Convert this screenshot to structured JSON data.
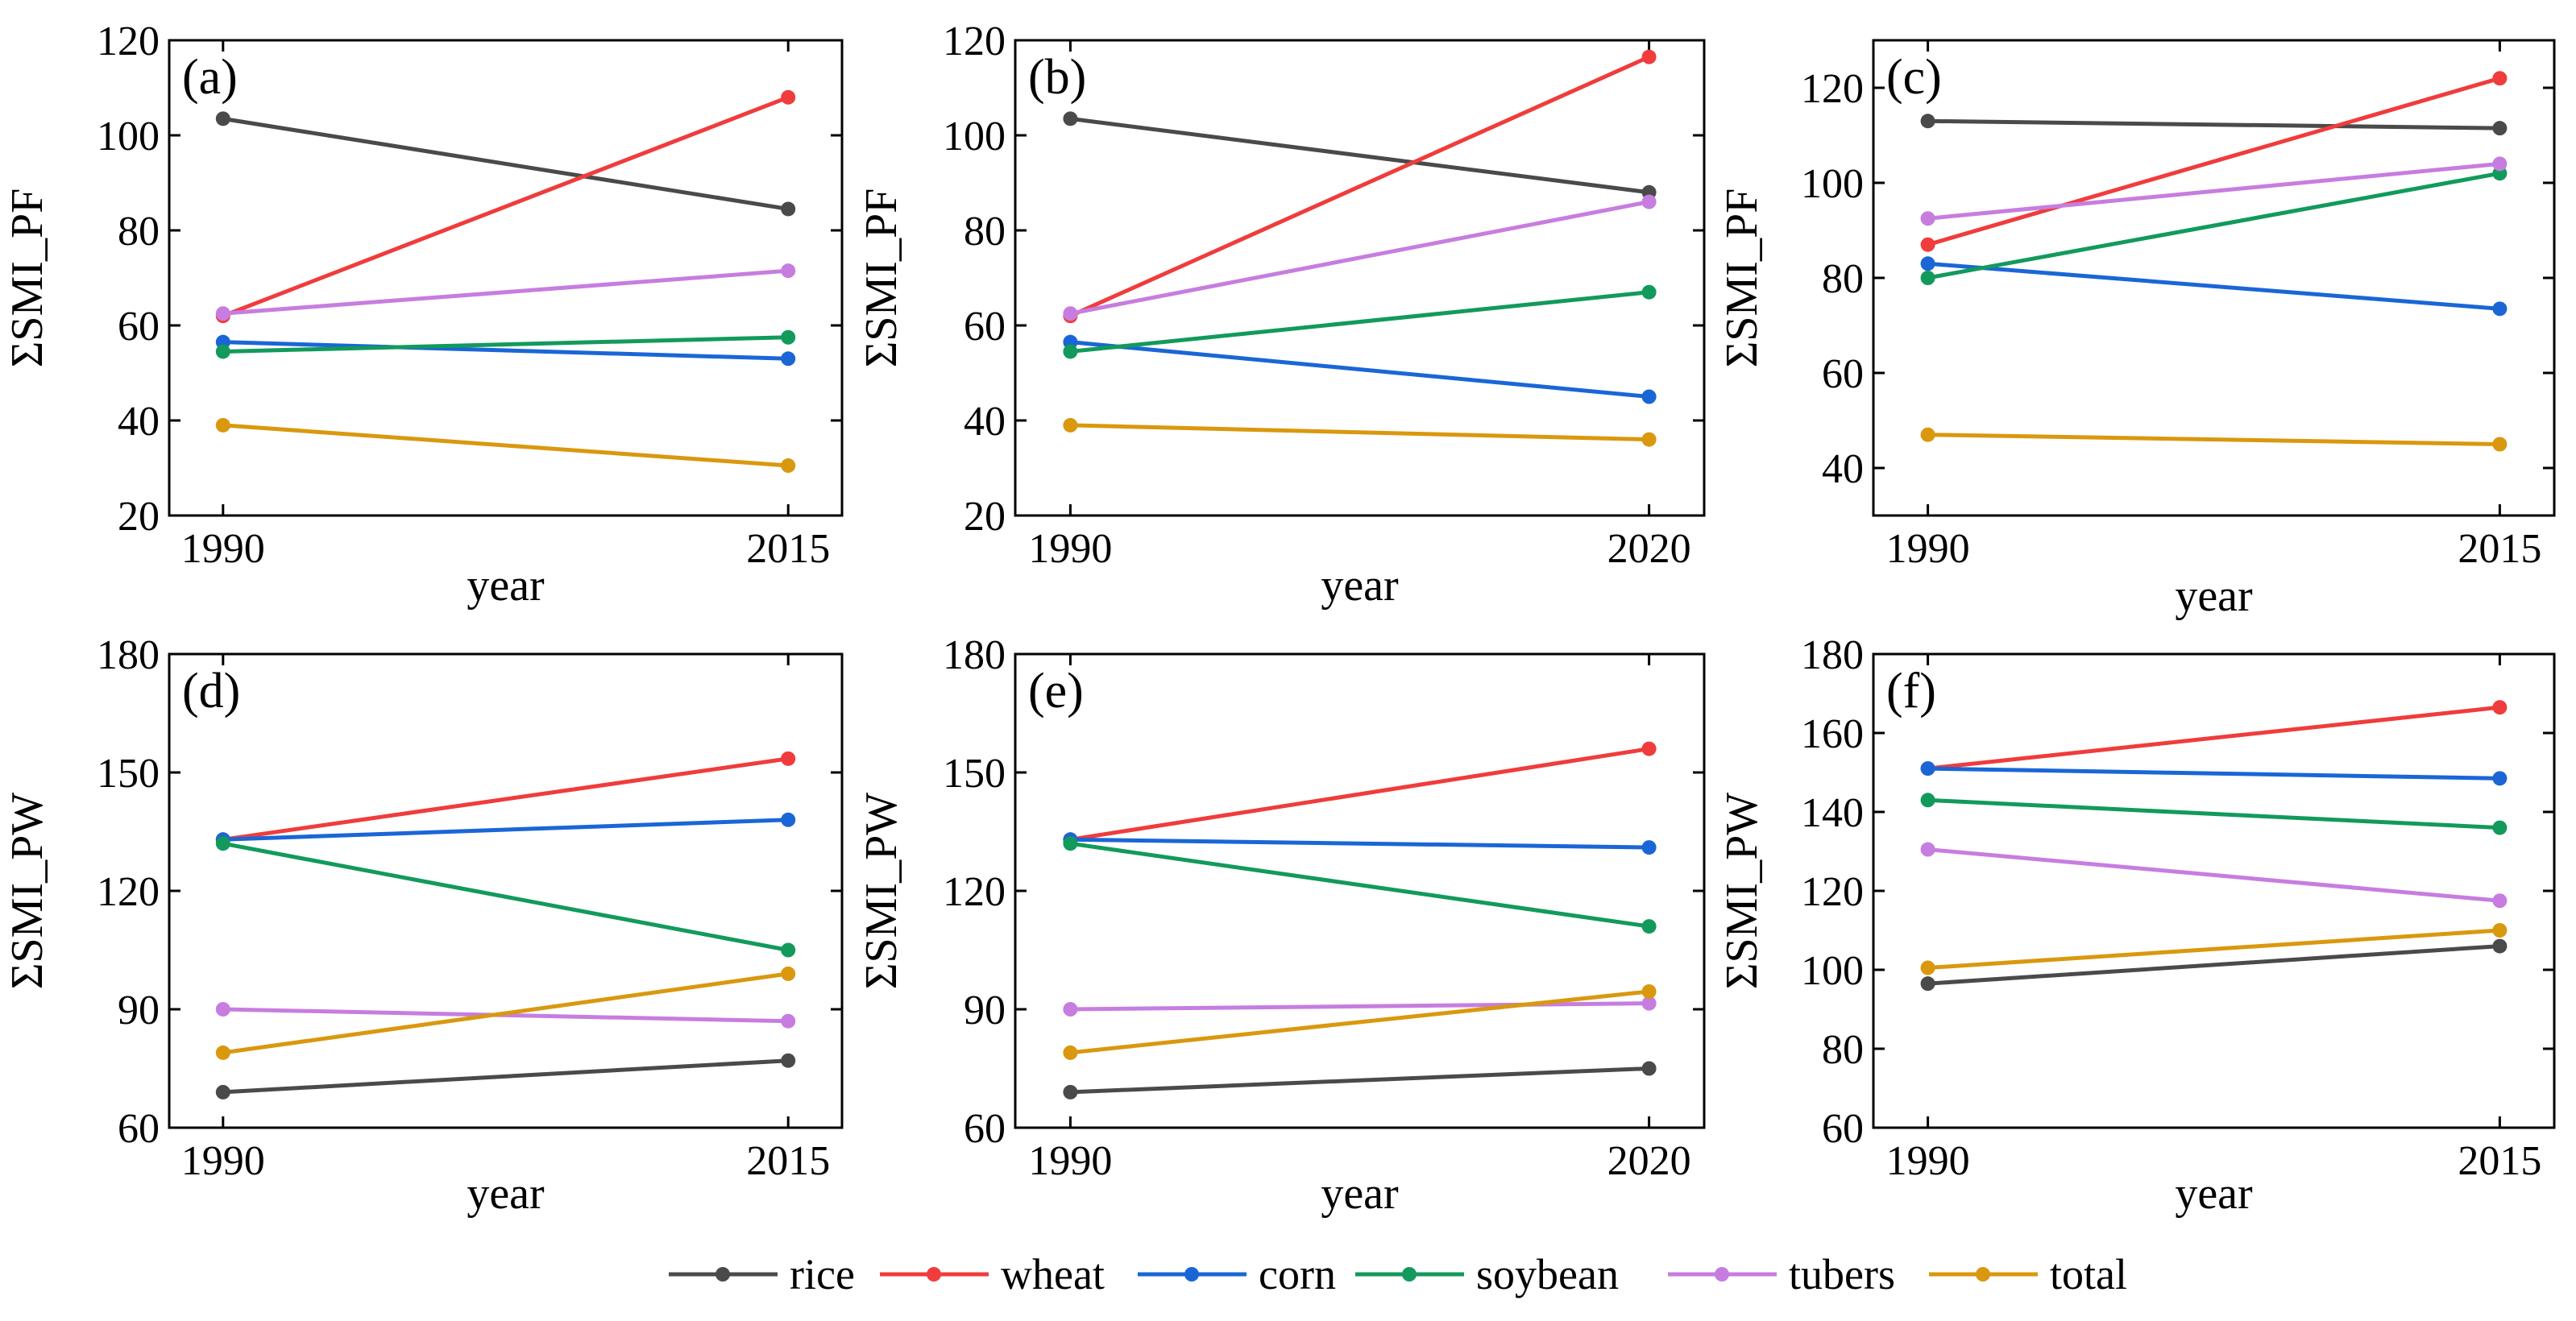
{
  "series_colors": {
    "rice": "#4a4a4a",
    "wheat": "#f03c3c",
    "corn": "#1a66d6",
    "soybean": "#129a5c",
    "tubers": "#c77de0",
    "total": "#d9980e"
  },
  "legend": {
    "items": [
      {
        "key": "rice",
        "label": "rice"
      },
      {
        "key": "wheat",
        "label": "wheat"
      },
      {
        "key": "corn",
        "label": "corn"
      },
      {
        "key": "soybean",
        "label": "soybean"
      },
      {
        "key": "tubers",
        "label": "tubers"
      },
      {
        "key": "total",
        "label": "total"
      }
    ]
  },
  "chart_data": [
    {
      "type": "line",
      "panel": "(a)",
      "xlabel": "year",
      "ylabel": "ΣSMI_PF",
      "categories": [
        "1990",
        "2015"
      ],
      "ylim": [
        20,
        120
      ],
      "yticks": [
        20,
        40,
        60,
        80,
        100,
        120
      ],
      "series": [
        {
          "key": "rice",
          "name": "rice",
          "values": [
            103.5,
            84.5
          ]
        },
        {
          "key": "wheat",
          "name": "wheat",
          "values": [
            62.0,
            108.0
          ]
        },
        {
          "key": "corn",
          "name": "corn",
          "values": [
            56.5,
            53.0
          ]
        },
        {
          "key": "soybean",
          "name": "soybean",
          "values": [
            54.5,
            57.5
          ]
        },
        {
          "key": "tubers",
          "name": "tubers",
          "values": [
            62.5,
            71.5
          ]
        },
        {
          "key": "total",
          "name": "total",
          "values": [
            39.0,
            30.5
          ]
        }
      ]
    },
    {
      "type": "line",
      "panel": "(b)",
      "xlabel": "year",
      "ylabel": "ΣSMI_PF",
      "categories": [
        "1990",
        "2020"
      ],
      "ylim": [
        20,
        120
      ],
      "yticks": [
        20,
        40,
        60,
        80,
        100,
        120
      ],
      "series": [
        {
          "key": "rice",
          "name": "rice",
          "values": [
            103.5,
            88.0
          ]
        },
        {
          "key": "wheat",
          "name": "wheat",
          "values": [
            62.0,
            116.5
          ]
        },
        {
          "key": "corn",
          "name": "corn",
          "values": [
            56.5,
            45.0
          ]
        },
        {
          "key": "soybean",
          "name": "soybean",
          "values": [
            54.5,
            67.0
          ]
        },
        {
          "key": "tubers",
          "name": "tubers",
          "values": [
            62.5,
            86.0
          ]
        },
        {
          "key": "total",
          "name": "total",
          "values": [
            39.0,
            36.0
          ]
        }
      ]
    },
    {
      "type": "line",
      "panel": "(c)",
      "xlabel": "year",
      "ylabel": "ΣSMI_PF",
      "categories": [
        "1990",
        "2015"
      ],
      "ylim": [
        30,
        130
      ],
      "yticks": [
        40,
        60,
        80,
        100,
        120
      ],
      "series": [
        {
          "key": "rice",
          "name": "rice",
          "values": [
            113.0,
            111.5
          ]
        },
        {
          "key": "wheat",
          "name": "wheat",
          "values": [
            87.0,
            122.0
          ]
        },
        {
          "key": "corn",
          "name": "corn",
          "values": [
            83.0,
            73.5
          ]
        },
        {
          "key": "soybean",
          "name": "soybean",
          "values": [
            80.0,
            102.0
          ]
        },
        {
          "key": "tubers",
          "name": "tubers",
          "values": [
            92.5,
            104.0
          ]
        },
        {
          "key": "total",
          "name": "total",
          "values": [
            47.0,
            45.0
          ]
        }
      ]
    },
    {
      "type": "line",
      "panel": "(d)",
      "xlabel": "year",
      "ylabel": "ΣSMI_PW",
      "categories": [
        "1990",
        "2015"
      ],
      "ylim": [
        60,
        180
      ],
      "yticks": [
        60,
        90,
        120,
        150,
        180
      ],
      "series": [
        {
          "key": "rice",
          "name": "rice",
          "values": [
            69.0,
            77.0
          ]
        },
        {
          "key": "wheat",
          "name": "wheat",
          "values": [
            133.0,
            153.5
          ]
        },
        {
          "key": "corn",
          "name": "corn",
          "values": [
            133.0,
            138.0
          ]
        },
        {
          "key": "soybean",
          "name": "soybean",
          "values": [
            132.0,
            105.0
          ]
        },
        {
          "key": "tubers",
          "name": "tubers",
          "values": [
            90.0,
            87.0
          ]
        },
        {
          "key": "total",
          "name": "total",
          "values": [
            79.0,
            99.0
          ]
        }
      ]
    },
    {
      "type": "line",
      "panel": "(e)",
      "xlabel": "year",
      "ylabel": "ΣSMI_PW",
      "categories": [
        "1990",
        "2020"
      ],
      "ylim": [
        60,
        180
      ],
      "yticks": [
        60,
        90,
        120,
        150,
        180
      ],
      "series": [
        {
          "key": "rice",
          "name": "rice",
          "values": [
            69.0,
            75.0
          ]
        },
        {
          "key": "wheat",
          "name": "wheat",
          "values": [
            133.0,
            156.0
          ]
        },
        {
          "key": "corn",
          "name": "corn",
          "values": [
            133.0,
            131.0
          ]
        },
        {
          "key": "soybean",
          "name": "soybean",
          "values": [
            132.0,
            111.0
          ]
        },
        {
          "key": "tubers",
          "name": "tubers",
          "values": [
            90.0,
            91.5
          ]
        },
        {
          "key": "total",
          "name": "total",
          "values": [
            79.0,
            94.5
          ]
        }
      ]
    },
    {
      "type": "line",
      "panel": "(f)",
      "xlabel": "year",
      "ylabel": "ΣSMI_PW",
      "categories": [
        "1990",
        "2015"
      ],
      "ylim": [
        60,
        180
      ],
      "yticks": [
        60,
        80,
        100,
        120,
        140,
        160,
        180
      ],
      "series": [
        {
          "key": "rice",
          "name": "rice",
          "values": [
            96.5,
            106.0
          ]
        },
        {
          "key": "wheat",
          "name": "wheat",
          "values": [
            151.0,
            166.5
          ]
        },
        {
          "key": "corn",
          "name": "corn",
          "values": [
            151.0,
            148.5
          ]
        },
        {
          "key": "soybean",
          "name": "soybean",
          "values": [
            143.0,
            136.0
          ]
        },
        {
          "key": "tubers",
          "name": "tubers",
          "values": [
            130.5,
            117.5
          ]
        },
        {
          "key": "total",
          "name": "total",
          "values": [
            100.5,
            110.0
          ]
        }
      ]
    }
  ]
}
